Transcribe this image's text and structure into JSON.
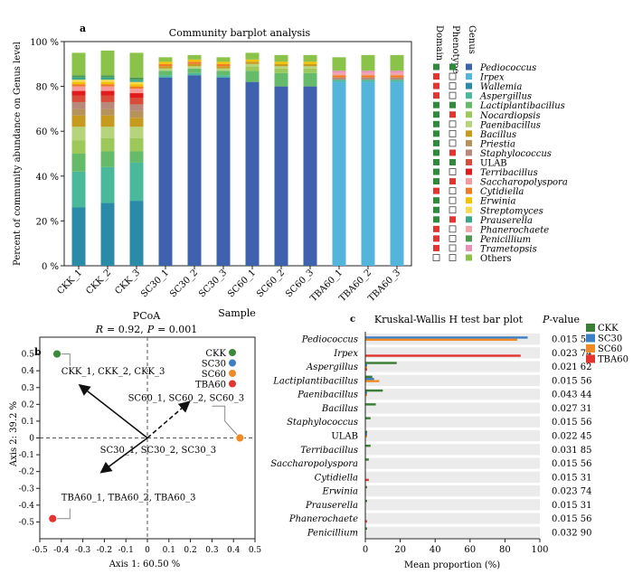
{
  "chart_data": [
    {
      "panel": "a",
      "type": "bar",
      "stacked": true,
      "title": "Community barplot analysis",
      "xlabel": "Sample",
      "ylabel": "Percent of community abundance on Genus level",
      "ylim": [
        0,
        100
      ],
      "y_ticks": [
        "0 %",
        "20 %",
        "40 %",
        "60 %",
        "80 %",
        "100 %"
      ],
      "categories": [
        "CKK_1",
        "CKK_2",
        "CKK_3",
        "SC30_1",
        "SC30_2",
        "SC30_3",
        "SC60_1",
        "SC60_2",
        "SC60_3",
        "TBA60_1",
        "TBA60_2",
        "TBA60_3"
      ],
      "legend_header": [
        "Domain",
        "Phenotype",
        "Genus"
      ],
      "series": [
        {
          "name": "Pediococcus",
          "color": "#3e62ad",
          "domain": "#2e8b3a",
          "phenotype": "#2e8b3a",
          "values": [
            0,
            0,
            0,
            84,
            85,
            84,
            82,
            80,
            80,
            0,
            0,
            0
          ]
        },
        {
          "name": "Irpex",
          "color": "#55b4dc",
          "domain": "#e3342f",
          "phenotype": "none",
          "values": [
            0,
            0,
            0,
            0,
            0,
            0,
            0,
            0,
            0,
            82,
            82,
            82
          ]
        },
        {
          "name": "Wallemia",
          "color": "#2b8aa8",
          "domain": "#e3342f",
          "phenotype": "none",
          "values": [
            26,
            28,
            29,
            0,
            0,
            0,
            0,
            0,
            0,
            0,
            0,
            0
          ]
        },
        {
          "name": "Aspergillus",
          "color": "#49b89b",
          "domain": "#e3342f",
          "phenotype": "none",
          "values": [
            16,
            16,
            17,
            1,
            1,
            1,
            0,
            0,
            0,
            1,
            1,
            1
          ]
        },
        {
          "name": "Lactiplantibacillus",
          "color": "#66bb6a",
          "domain": "#2e8b3a",
          "phenotype": "#2e8b3a",
          "values": [
            8,
            7,
            5,
            2,
            2,
            2,
            5,
            6,
            6,
            0,
            0,
            0
          ]
        },
        {
          "name": "Nocardiopsis",
          "color": "#9cc95a",
          "domain": "#2e8b3a",
          "phenotype": "#e3342f",
          "values": [
            6,
            6,
            6,
            0,
            0,
            0,
            2,
            2,
            2,
            0,
            0,
            0
          ]
        },
        {
          "name": "Paenibacillus",
          "color": "#b6d47c",
          "domain": "#2e8b3a",
          "phenotype": "none",
          "values": [
            6,
            5,
            5,
            1,
            1,
            1,
            1,
            1,
            1,
            0,
            0,
            0
          ]
        },
        {
          "name": "Bacillus",
          "color": "#c69a1c",
          "domain": "#2e8b3a",
          "phenotype": "none",
          "values": [
            5,
            5,
            4,
            1,
            1,
            1,
            1,
            1,
            1,
            0,
            0,
            0
          ]
        },
        {
          "name": "Priestia",
          "color": "#b7925a",
          "domain": "#2e8b3a",
          "phenotype": "none",
          "values": [
            3,
            3,
            3,
            0,
            0,
            0,
            0,
            0,
            0,
            0,
            0,
            0
          ]
        },
        {
          "name": "Staphylococcus",
          "color": "#b8897a",
          "domain": "#2e8b3a",
          "phenotype": "#e3342f",
          "values": [
            3,
            3,
            3,
            0,
            0,
            0,
            0,
            0,
            0,
            1,
            1,
            1
          ]
        },
        {
          "name": "ULAB",
          "color": "#d94c3a",
          "domain": "#2e8b3a",
          "phenotype": "#2e8b3a",
          "values": [
            3,
            3,
            3,
            0,
            0,
            0,
            0,
            0,
            0,
            0,
            0,
            0
          ]
        },
        {
          "name": "Terribacillus",
          "color": "#e31a1c",
          "domain": "#2e8b3a",
          "phenotype": "none",
          "values": [
            2,
            2,
            2,
            0,
            0,
            0,
            0,
            0,
            0,
            0,
            0,
            0
          ]
        },
        {
          "name": "Saccharopolyspora",
          "color": "#f59a9a",
          "domain": "#2e8b3a",
          "phenotype": "#e3342f",
          "values": [
            2,
            2,
            2,
            0,
            0,
            0,
            0,
            0,
            0,
            0,
            0,
            0
          ]
        },
        {
          "name": "Cytidiella",
          "color": "#ef7b24",
          "domain": "#e3342f",
          "phenotype": "none",
          "values": [
            1,
            1,
            1,
            1,
            1,
            1,
            0,
            0,
            0,
            1,
            1,
            1
          ]
        },
        {
          "name": "Erwinia",
          "color": "#f2c200",
          "domain": "#2e8b3a",
          "phenotype": "none",
          "values": [
            1,
            1,
            1,
            1,
            1,
            1,
            1,
            1,
            1,
            0,
            0,
            0
          ]
        },
        {
          "name": "Streptomyces",
          "color": "#f5d94e",
          "domain": "#2e8b3a",
          "phenotype": "none",
          "values": [
            1,
            1,
            1,
            0,
            0,
            0,
            0,
            0,
            0,
            0,
            0,
            0
          ]
        },
        {
          "name": "Prauserella",
          "color": "#37a88a",
          "domain": "#2e8b3a",
          "phenotype": "#e3342f",
          "values": [
            1,
            1,
            1,
            0,
            0,
            0,
            0,
            0,
            0,
            0,
            0,
            0
          ]
        },
        {
          "name": "Phanerochaete",
          "color": "#f4a3a8",
          "domain": "#e3342f",
          "phenotype": "none",
          "values": [
            0,
            0,
            0,
            0,
            0,
            0,
            0,
            0,
            0,
            1,
            1,
            1
          ]
        },
        {
          "name": "Penicillium",
          "color": "#4b9a4f",
          "domain": "#e3342f",
          "phenotype": "none",
          "values": [
            1,
            1,
            1,
            0,
            0,
            0,
            0,
            0,
            0,
            0,
            0,
            0
          ]
        },
        {
          "name": "Trametopsis",
          "color": "#ea8fb8",
          "domain": "#e3342f",
          "phenotype": "none",
          "values": [
            0,
            0,
            0,
            0,
            0,
            0,
            0,
            0,
            0,
            1,
            1,
            1
          ]
        },
        {
          "name": "Others",
          "color": "#8bc34a",
          "domain": "none",
          "phenotype": "none",
          "values": [
            10,
            11,
            11,
            2,
            2,
            2,
            3,
            3,
            3,
            6,
            7,
            7
          ]
        }
      ]
    },
    {
      "panel": "b",
      "type": "scatter",
      "title": "PCoA",
      "subtitle": {
        "r_label": "R",
        "r_value": "= 0.92,",
        "p_label": "P",
        "p_value": "= 0.001"
      },
      "xlabel": "Axis 1: 60.50 %",
      "ylabel": "Axis 2: 39.2 %",
      "xlim": [
        -0.5,
        0.5
      ],
      "ylim": [
        -0.6,
        0.6
      ],
      "x_ticks": [
        "-0.5",
        "-0.4",
        "-0.3",
        "-0.2",
        "-0.1",
        "0",
        "0.1",
        "0.2",
        "0.3",
        "0.4",
        "0.5"
      ],
      "y_ticks": [
        "-0.5",
        "-0.4",
        "-0.3",
        "-0.2",
        "-0.1",
        "0",
        "0.1",
        "0.2",
        "0.3",
        "0.4",
        "0.5"
      ],
      "points": [
        {
          "name": "CKK",
          "x": -0.42,
          "y": 0.5,
          "color": "#3a8a3a"
        },
        {
          "name": "SC30",
          "x": 0.43,
          "y": 0.0,
          "color": "#3b7fc4"
        },
        {
          "name": "SC60",
          "x": 0.43,
          "y": 0.0,
          "color": "#f08a24"
        },
        {
          "name": "TBA60",
          "x": -0.44,
          "y": -0.48,
          "color": "#e3342f"
        }
      ],
      "legend": [
        "CKK",
        "SC30",
        "SC60",
        "TBA60"
      ],
      "annotations": [
        {
          "text": "CKK_1, CKK_2, CKK_3",
          "x": -0.4,
          "y": 0.38
        },
        {
          "text": "SC60_1, SC60_2, SC60_3",
          "x": -0.09,
          "y": 0.22
        },
        {
          "text": "SC30_1, SC30_2, SC30_3",
          "x": -0.22,
          "y": -0.09
        },
        {
          "text": "TBA60_1, TBA60_2, TBA60_3",
          "x": -0.4,
          "y": -0.37
        }
      ],
      "arrows": [
        {
          "from": [
            0,
            0
          ],
          "to": [
            -0.31,
            0.31
          ],
          "style": "solid"
        },
        {
          "from": [
            0,
            0
          ],
          "to": [
            0.19,
            0.21
          ],
          "style": "dashed"
        },
        {
          "from": [
            0,
            0
          ],
          "to": [
            -0.21,
            -0.2
          ],
          "style": "solid"
        }
      ]
    },
    {
      "panel": "c",
      "type": "bar",
      "orientation": "horizontal",
      "title": "Kruskal-Wallis H test bar plot",
      "xlabel": "Mean proportion (%)",
      "xlim": [
        0,
        100
      ],
      "x_ticks": [
        "0",
        "20",
        "40",
        "60",
        "80",
        "100"
      ],
      "pvalue_header": "-value",
      "pvalue_letter": "P",
      "categories": [
        "Pediococcus",
        "Irpex",
        "Aspergillus",
        "Lactiplantibacillus",
        "Paenibacillus",
        "Bacillus",
        "Staphylococcus",
        "ULAB",
        "Terribacillus",
        "Saccharopolyspora",
        "Cytidiella",
        "Erwinia",
        "Prauserella",
        "Phanerochaete",
        "Penicillium"
      ],
      "italic": [
        true,
        true,
        true,
        true,
        true,
        true,
        true,
        false,
        true,
        true,
        true,
        true,
        true,
        true,
        true
      ],
      "pvalues": [
        "0.015 56",
        "0.023 74",
        "0.021 62",
        "0.015 56",
        "0.043 44",
        "0.027 31",
        "0.015 56",
        "0.022 45",
        "0.031 85",
        "0.015 56",
        "0.015 31",
        "0.023 74",
        "0.015 31",
        "0.015 56",
        "0.032 90"
      ],
      "series": [
        {
          "name": "CKK",
          "color": "#3a7d34",
          "values": [
            0,
            0,
            18,
            4,
            10,
            6,
            3,
            1,
            3,
            2,
            0,
            1,
            1,
            0,
            1
          ]
        },
        {
          "name": "SC30",
          "color": "#3b7fc4",
          "values": [
            93,
            0,
            1,
            5,
            1,
            0,
            0,
            1,
            0,
            0,
            0,
            0,
            0,
            0,
            0
          ]
        },
        {
          "name": "SC60",
          "color": "#f08a24",
          "values": [
            87,
            0,
            1,
            8,
            1,
            0,
            0,
            1,
            0,
            0,
            0,
            0,
            0,
            0,
            0
          ]
        },
        {
          "name": "TBA60",
          "color": "#e3342f",
          "values": [
            0,
            89,
            1,
            0,
            0,
            0,
            0,
            0,
            0,
            0,
            2,
            0,
            0,
            1,
            0
          ]
        }
      ]
    }
  ]
}
